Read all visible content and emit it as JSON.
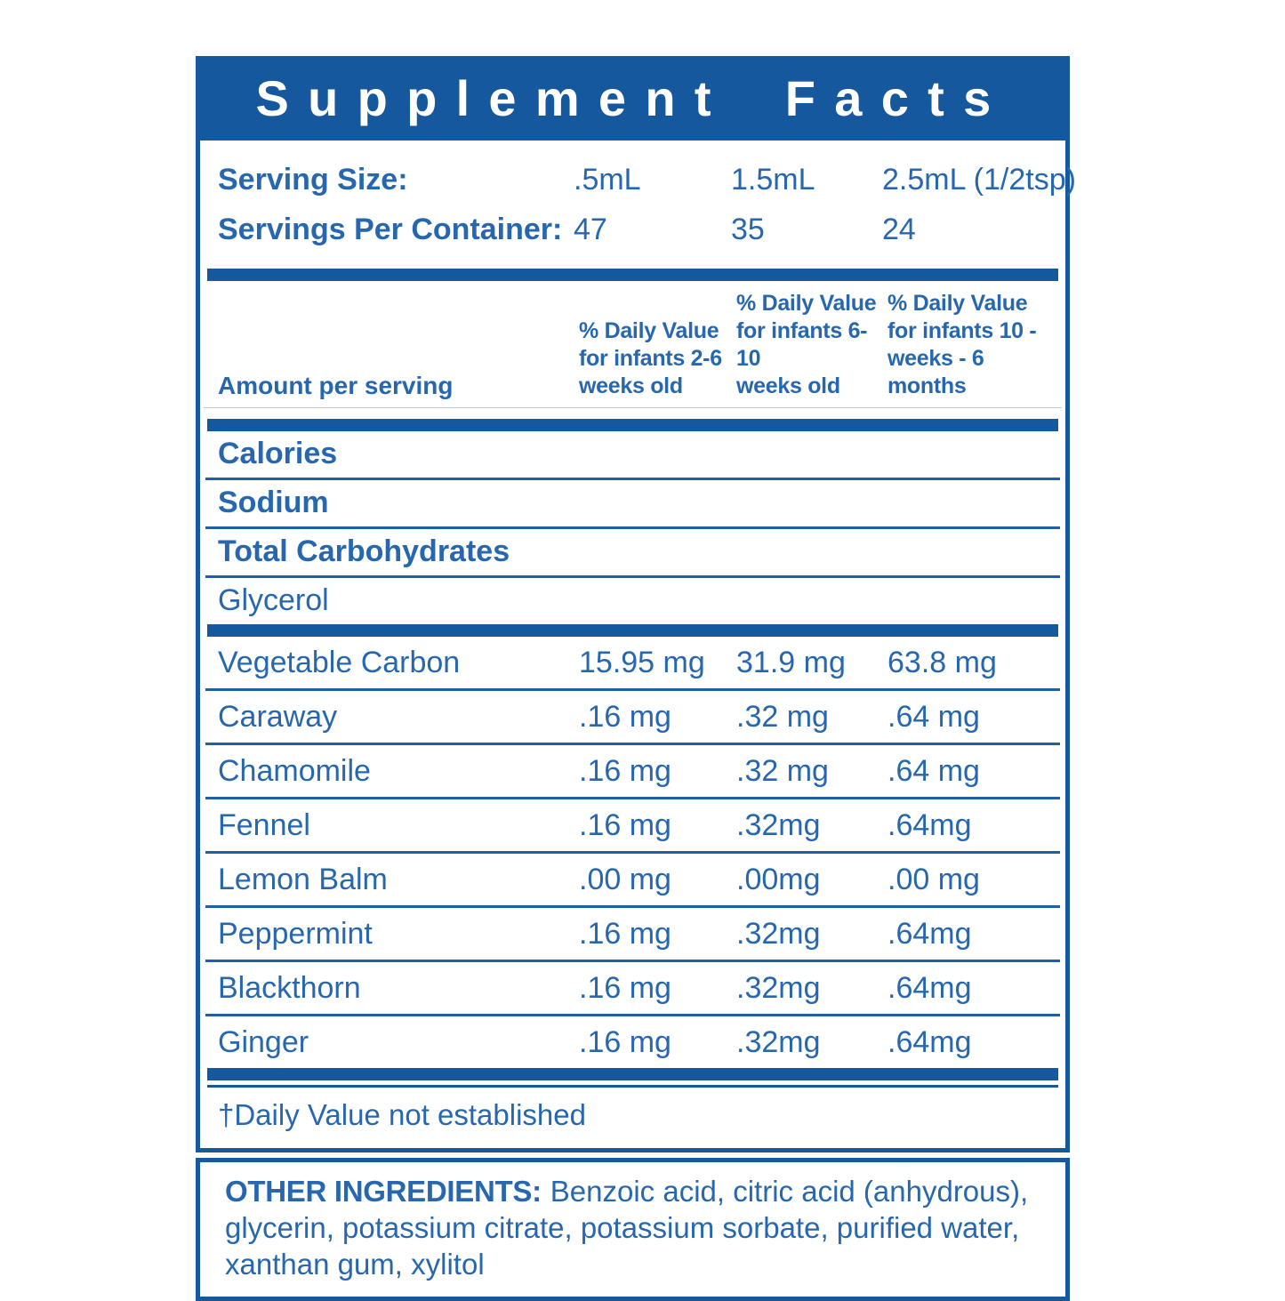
{
  "colors": {
    "primary_blue": "#15589e",
    "text_blue": "#2767af",
    "title_text": "#ffffff"
  },
  "title": "Supplement Facts",
  "serving": {
    "size_label": "Serving Size:",
    "size_values": [
      ".5mL",
      "1.5mL",
      "2.5mL (1/2tsp)"
    ],
    "container_label": "Servings Per Container:",
    "container_values": [
      "47",
      "35",
      "24"
    ]
  },
  "table": {
    "amount_header": "Amount per serving",
    "dv_headers": [
      "% Daily Value\nfor infants 2-6\nweeks old",
      "% Daily Value\nfor infants 6-10\nweeks old",
      "% Daily Value\nfor infants 10 -\nweeks - 6 months"
    ],
    "nutrient_rows": [
      {
        "label": "Calories",
        "bold": true
      },
      {
        "label": "Sodium",
        "bold": true
      },
      {
        "label": "Total Carbohydrates",
        "bold": true
      },
      {
        "label": "Glycerol",
        "bold": false
      }
    ],
    "ingredient_rows": [
      {
        "label": "Vegetable Carbon",
        "values": [
          "15.95 mg",
          "31.9 mg",
          "63.8 mg"
        ]
      },
      {
        "label": "Caraway",
        "values": [
          ".16 mg",
          ".32 mg",
          ".64 mg"
        ]
      },
      {
        "label": "Chamomile",
        "values": [
          ".16 mg",
          ".32 mg",
          ".64 mg"
        ]
      },
      {
        "label": "Fennel",
        "values": [
          ".16 mg",
          ".32mg",
          ".64mg"
        ]
      },
      {
        "label": "Lemon Balm",
        "values": [
          ".00 mg",
          ".00mg",
          ".00 mg"
        ]
      },
      {
        "label": "Peppermint",
        "values": [
          ".16 mg",
          ".32mg",
          ".64mg"
        ]
      },
      {
        "label": "Blackthorn",
        "values": [
          ".16 mg",
          ".32mg",
          ".64mg"
        ]
      },
      {
        "label": "Ginger",
        "values": [
          ".16 mg",
          ".32mg",
          ".64mg"
        ]
      }
    ],
    "footnote": "†Daily Value not established"
  },
  "other_ingredients": {
    "label": "OTHER INGREDIENTS:",
    "text": "Benzoic acid, citric acid (anhydrous), glycerin, potassium citrate, potassium sorbate, purified water, xanthan gum, xylitol"
  }
}
